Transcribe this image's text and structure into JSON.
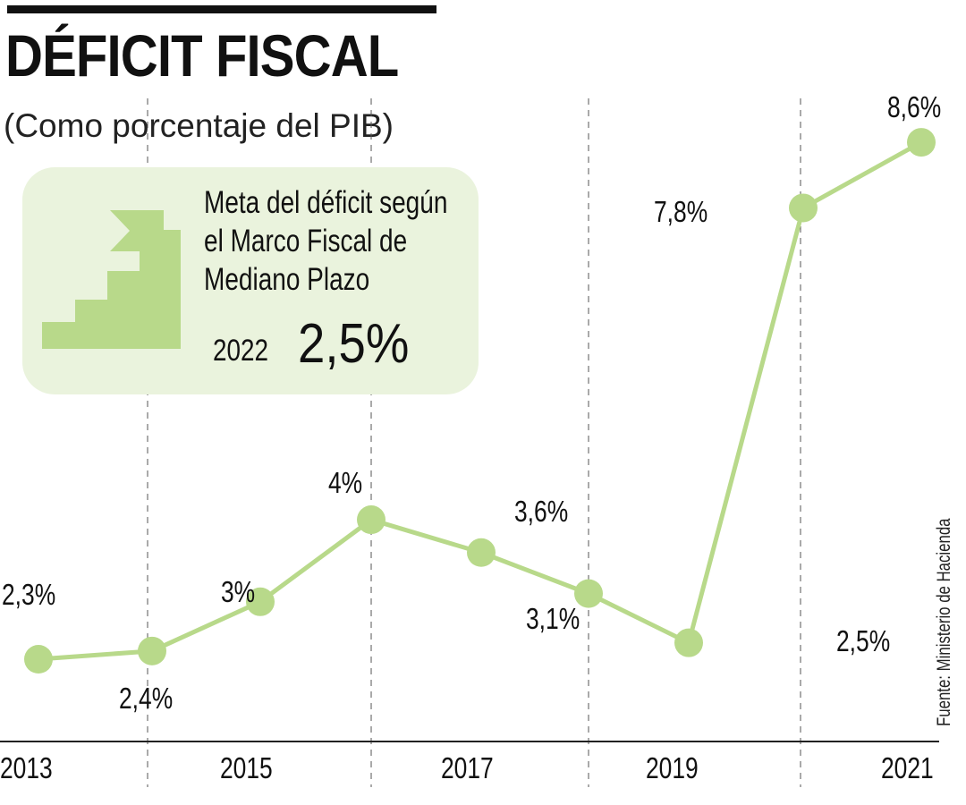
{
  "header": {
    "title": "DÉFICIT FISCAL",
    "subtitle": "(Como porcentaje del PIB)"
  },
  "goal_box": {
    "icon": "stairs-flag-icon",
    "lines": [
      "Meta del déficit según",
      "el Marco Fiscal de",
      "Mediano Plazo"
    ],
    "year": "2022",
    "value": "2,5%"
  },
  "source": "Fuente: Ministerio de Hacienda",
  "colors": {
    "line": "#b8d98a",
    "box_bg": "#eaf3dd",
    "axis": "#222222",
    "grid": "#555555"
  },
  "chart_data": {
    "type": "line",
    "title": "DÉFICIT FISCAL",
    "subtitle": "(Como porcentaje del PIB)",
    "xlabel": "",
    "ylabel": "",
    "x": [
      2013,
      2014,
      2015,
      2016,
      2017,
      2018,
      2019,
      2020,
      2021
    ],
    "values": [
      2.3,
      2.4,
      3.0,
      4.0,
      3.6,
      3.1,
      2.5,
      7.8,
      8.6
    ],
    "data_labels": [
      "2,3%",
      "2,4%",
      "3%",
      "4%",
      "3,6%",
      "3,1%",
      "2,5%",
      "7,8%",
      "8,6%"
    ],
    "x_tick_labels": [
      "2013",
      "2015",
      "2017",
      "2019",
      "2021"
    ],
    "dashed_gridlines_at": [
      2014,
      2016,
      2018,
      2020
    ],
    "ylim": [
      0,
      9.8
    ],
    "grid": false,
    "legend": "none"
  }
}
